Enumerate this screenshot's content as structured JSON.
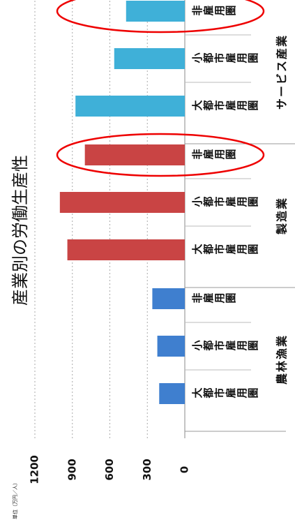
{
  "chart_data": {
    "type": "grouped_bar",
    "title": "産業別の労働生産性",
    "unit_label": "単位（万円／人）",
    "groups": [
      {
        "name": "農林漁業",
        "color": "#3f7fcf",
        "categories": [
          "大都市雇用圏",
          "小都市雇用圏",
          "非雇用圏"
        ],
        "values": [
          205,
          220,
          260
        ]
      },
      {
        "name": "製造業",
        "color": "#c94444",
        "categories": [
          "大都市雇用圏",
          "小都市雇用圏",
          "非雇用圏"
        ],
        "values": [
          940,
          1000,
          800
        ]
      },
      {
        "name": "サービス産業",
        "color": "#3fb0d8",
        "categories": [
          "大都市雇用圏",
          "小都市雇用圏",
          "非雇用圏"
        ],
        "values": [
          875,
          565,
          470
        ]
      }
    ],
    "ylim": [
      0,
      1200
    ],
    "yticks": [
      0,
      300,
      600,
      900,
      1200
    ],
    "grid": true
  }
}
